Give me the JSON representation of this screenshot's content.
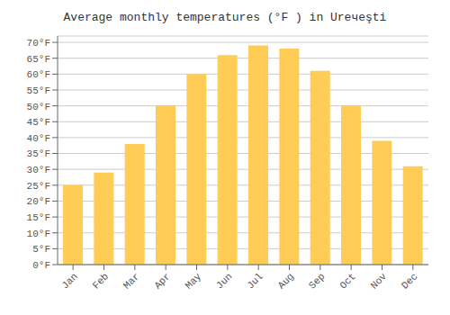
{
  "chart_data": {
    "type": "bar",
    "title": "Average monthly temperatures (°F ) in Urечеşti",
    "categories": [
      "Jan",
      "Feb",
      "Mar",
      "Apr",
      "May",
      "Jun",
      "Jul",
      "Aug",
      "Sep",
      "Oct",
      "Nov",
      "Dec"
    ],
    "values": [
      25,
      29,
      38,
      50,
      60,
      66,
      69,
      68,
      61,
      50,
      39,
      31
    ],
    "color": "#FFCC55",
    "ylim": [
      0,
      72
    ],
    "yticks": [
      {
        "value": 0,
        "label": "0°F"
      },
      {
        "value": 5,
        "label": "5°F"
      },
      {
        "value": 10,
        "label": "10°F"
      },
      {
        "value": 15,
        "label": "15°F"
      },
      {
        "value": 20,
        "label": "20°F"
      },
      {
        "value": 25,
        "label": "25°F"
      },
      {
        "value": 30,
        "label": "30°F"
      },
      {
        "value": 35,
        "label": "35°F"
      },
      {
        "value": 40,
        "label": "40°F"
      },
      {
        "value": 45,
        "label": "45°F"
      },
      {
        "value": 50,
        "label": "50°F"
      },
      {
        "value": 55,
        "label": "55°F"
      },
      {
        "value": 60,
        "label": "60°F"
      },
      {
        "value": 65,
        "label": "65°F"
      },
      {
        "value": 70,
        "label": "70°F"
      }
    ],
    "grid": true
  }
}
